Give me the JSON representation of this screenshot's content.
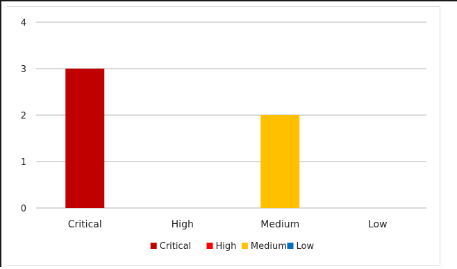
{
  "chart_data": {
    "type": "bar",
    "categories": [
      "Critical",
      "High",
      "Medium",
      "Low"
    ],
    "values": [
      3,
      0,
      2,
      0
    ],
    "colors": [
      "#c00000",
      "#ff0000",
      "#ffc000",
      "#0070c0"
    ],
    "ylim": [
      0,
      4
    ],
    "yticks": [
      "0",
      "1",
      "2",
      "3",
      "4"
    ],
    "grid": true,
    "legend": {
      "position": "bottom",
      "items": [
        {
          "label": "Critical",
          "color": "#c00000"
        },
        {
          "label": "High",
          "color": "#ff0000"
        },
        {
          "label": "Medium",
          "color": "#ffc000"
        },
        {
          "label": "Low",
          "color": "#0070c0"
        }
      ]
    }
  }
}
